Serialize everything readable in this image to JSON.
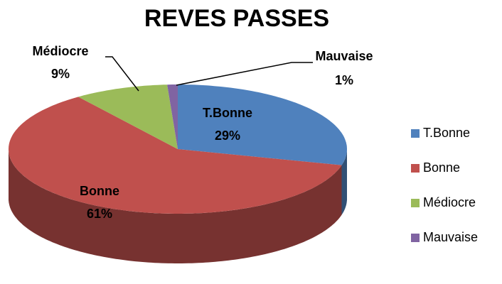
{
  "chart_data": {
    "type": "pie3d",
    "title": "REVES PASSES",
    "categories": [
      "T.Bonne",
      "Bonne",
      "Médiocre",
      "Mauvaise"
    ],
    "values": [
      29,
      61,
      9,
      1
    ],
    "value_labels": [
      "29%",
      "61%",
      "9%",
      "1%"
    ],
    "colors": [
      "#4f81bd",
      "#c0504d",
      "#9bbb59",
      "#8064a2"
    ],
    "legend": "right"
  }
}
